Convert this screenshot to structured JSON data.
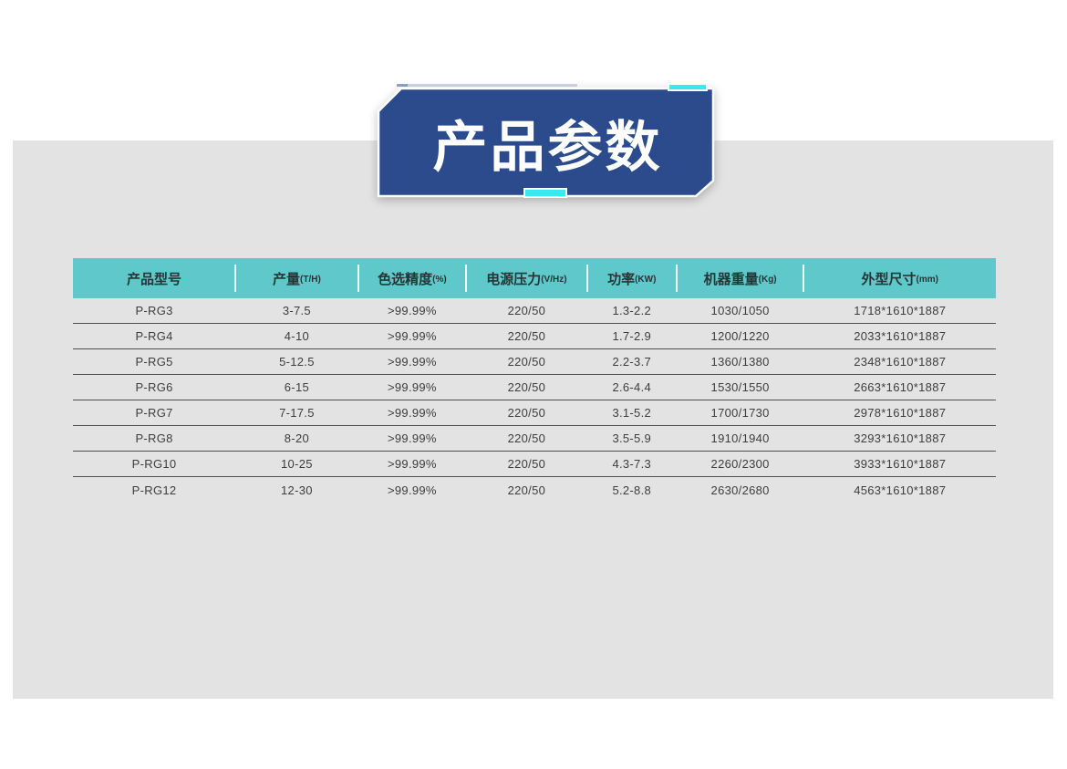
{
  "colors": {
    "page-bg": "#ffffff",
    "panel-bg": "#e3e3e3",
    "banner-blue": "#2b4b8d",
    "accent-cyan": "#3be8f2",
    "header-teal": "#5fc8ca",
    "row-line": "#4f4f4f",
    "cell-text": "#3d3d3d",
    "header-text": "#263636",
    "title-text": "#ffffff"
  },
  "banner": {
    "title": "产品参数"
  },
  "table": {
    "columns": [
      {
        "label": "产品型号",
        "unit": ""
      },
      {
        "label": "产量",
        "unit": "(T/H)"
      },
      {
        "label": "色选精度",
        "unit": "(%)"
      },
      {
        "label": "电源压力",
        "unit": "(V/Hz)"
      },
      {
        "label": "功率",
        "unit": "(KW)"
      },
      {
        "label": "机器重量",
        "unit": "(Kg)"
      },
      {
        "label": "外型尺寸",
        "unit": "(mm)"
      }
    ],
    "rows": [
      [
        "P-RG3",
        "3-7.5",
        ">99.99%",
        "220/50",
        "1.3-2.2",
        "1030/1050",
        "1718*1610*1887"
      ],
      [
        "P-RG4",
        "4-10",
        ">99.99%",
        "220/50",
        "1.7-2.9",
        "1200/1220",
        "2033*1610*1887"
      ],
      [
        "P-RG5",
        "5-12.5",
        ">99.99%",
        "220/50",
        "2.2-3.7",
        "1360/1380",
        "2348*1610*1887"
      ],
      [
        "P-RG6",
        "6-15",
        ">99.99%",
        "220/50",
        "2.6-4.4",
        "1530/1550",
        "2663*1610*1887"
      ],
      [
        "P-RG7",
        "7-17.5",
        ">99.99%",
        "220/50",
        "3.1-5.2",
        "1700/1730",
        "2978*1610*1887"
      ],
      [
        "P-RG8",
        "8-20",
        ">99.99%",
        "220/50",
        "3.5-5.9",
        "1910/1940",
        "3293*1610*1887"
      ],
      [
        "P-RG10",
        "10-25",
        ">99.99%",
        "220/50",
        "4.3-7.3",
        "2260/2300",
        "3933*1610*1887"
      ],
      [
        "P-RG12",
        "12-30",
        ">99.99%",
        "220/50",
        "5.2-8.8",
        "2630/2680",
        "4563*1610*1887"
      ]
    ]
  }
}
